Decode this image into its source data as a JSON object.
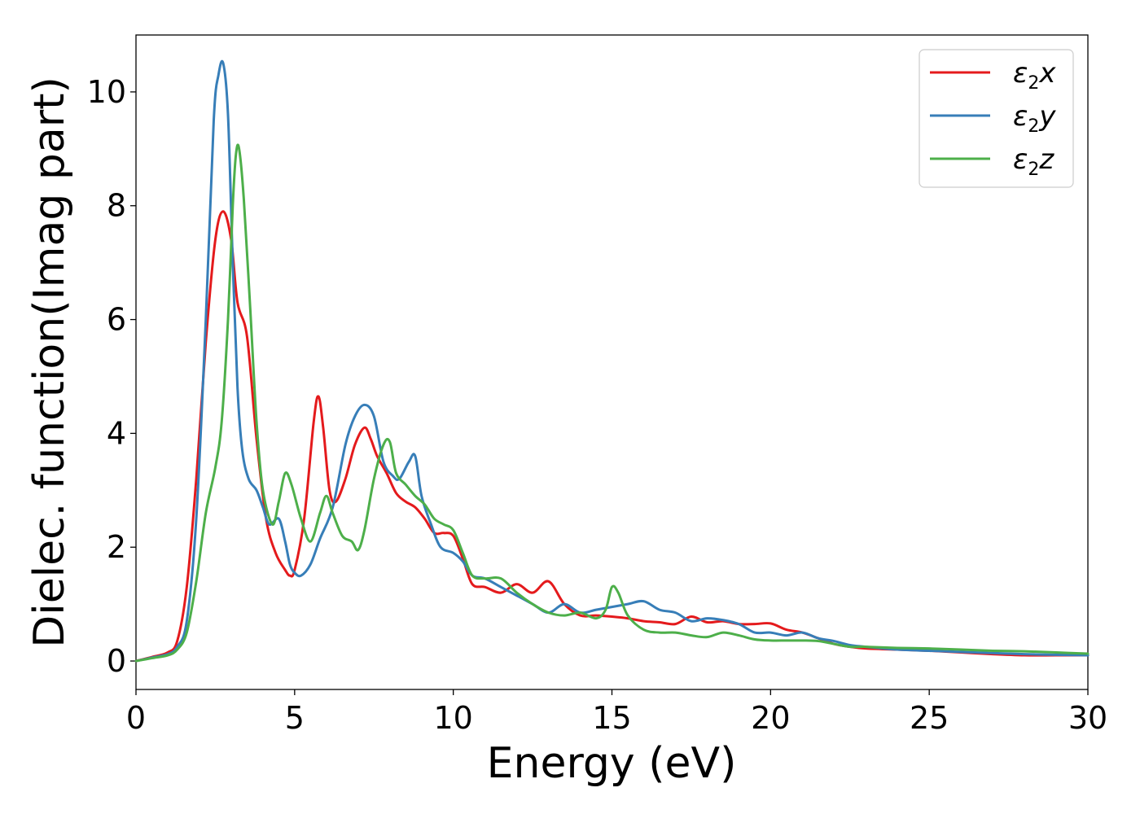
{
  "chart_data": {
    "type": "line",
    "title": "",
    "xlabel": "Energy (eV)",
    "ylabel": "Dielec. function(Imag part)",
    "xlim": [
      0,
      30
    ],
    "ylim": [
      -0.5,
      11
    ],
    "xticks": [
      0,
      5,
      10,
      15,
      20,
      25,
      30
    ],
    "yticks": [
      0,
      2,
      4,
      6,
      8,
      10
    ],
    "grid": false,
    "legend_position": "top-right",
    "series": [
      {
        "name": "ε2x",
        "legend": {
          "base": "ε",
          "sub": "2",
          "suffix": "x"
        },
        "color": "#e41a1c",
        "x": [
          0,
          0.5,
          1.0,
          1.3,
          1.6,
          1.9,
          2.2,
          2.5,
          2.75,
          3.0,
          3.2,
          3.5,
          3.8,
          4.1,
          4.4,
          4.7,
          4.85,
          5.0,
          5.3,
          5.6,
          5.75,
          5.9,
          6.1,
          6.3,
          6.6,
          6.9,
          7.2,
          7.4,
          7.6,
          7.9,
          8.2,
          8.5,
          8.8,
          9.1,
          9.4,
          9.7,
          10.0,
          10.3,
          10.6,
          11.0,
          11.5,
          12.0,
          12.5,
          13.0,
          13.5,
          14.0,
          14.5,
          15.0,
          15.5,
          16.0,
          16.5,
          17.0,
          17.5,
          18.0,
          18.5,
          19.0,
          19.5,
          20.0,
          20.5,
          21.0,
          21.5,
          22.0,
          22.5,
          23.0,
          24.0,
          25.0,
          26.0,
          27.0,
          28.0,
          29.0,
          30.0
        ],
        "values": [
          0.0,
          0.07,
          0.15,
          0.35,
          1.3,
          3.2,
          5.6,
          7.4,
          7.9,
          7.4,
          6.3,
          5.7,
          3.9,
          2.5,
          1.9,
          1.6,
          1.5,
          1.6,
          2.5,
          4.2,
          4.65,
          4.1,
          3.0,
          2.8,
          3.2,
          3.8,
          4.1,
          3.9,
          3.6,
          3.3,
          2.95,
          2.8,
          2.7,
          2.5,
          2.25,
          2.25,
          2.2,
          1.8,
          1.35,
          1.3,
          1.2,
          1.35,
          1.2,
          1.4,
          1.0,
          0.8,
          0.8,
          0.78,
          0.75,
          0.7,
          0.68,
          0.65,
          0.78,
          0.68,
          0.7,
          0.65,
          0.65,
          0.66,
          0.55,
          0.5,
          0.4,
          0.3,
          0.25,
          0.22,
          0.2,
          0.18,
          0.15,
          0.12,
          0.1,
          0.1,
          0.1
        ]
      },
      {
        "name": "ε2y",
        "legend": {
          "base": "ε",
          "sub": "2",
          "suffix": "y"
        },
        "color": "#377eb8",
        "x": [
          0,
          0.5,
          1.0,
          1.3,
          1.6,
          1.9,
          2.2,
          2.45,
          2.6,
          2.75,
          2.9,
          3.05,
          3.2,
          3.35,
          3.55,
          3.8,
          4.0,
          4.2,
          4.5,
          4.7,
          4.85,
          5.0,
          5.2,
          5.5,
          5.8,
          6.2,
          6.6,
          6.9,
          7.2,
          7.5,
          7.8,
          8.1,
          8.3,
          8.6,
          8.8,
          9.0,
          9.3,
          9.6,
          10.0,
          10.3,
          10.6,
          11.0,
          11.5,
          12.0,
          12.5,
          13.0,
          13.5,
          14.0,
          14.5,
          15.0,
          15.5,
          16.0,
          16.5,
          17.0,
          17.5,
          18.0,
          18.5,
          19.0,
          19.5,
          20.0,
          20.5,
          21.0,
          21.5,
          22.0,
          22.5,
          23.0,
          24.0,
          25.0,
          26.0,
          27.0,
          28.0,
          29.0,
          30.0
        ],
        "values": [
          0.0,
          0.06,
          0.12,
          0.25,
          0.7,
          2.5,
          6.0,
          9.5,
          10.3,
          10.5,
          9.6,
          7.0,
          4.8,
          3.7,
          3.2,
          3.0,
          2.7,
          2.4,
          2.5,
          2.1,
          1.7,
          1.55,
          1.5,
          1.7,
          2.15,
          2.7,
          3.8,
          4.3,
          4.5,
          4.3,
          3.5,
          3.25,
          3.2,
          3.5,
          3.6,
          2.9,
          2.4,
          2.0,
          1.9,
          1.75,
          1.5,
          1.45,
          1.3,
          1.15,
          1.0,
          0.85,
          1.0,
          0.85,
          0.9,
          0.95,
          1.0,
          1.05,
          0.9,
          0.85,
          0.7,
          0.75,
          0.72,
          0.65,
          0.5,
          0.5,
          0.45,
          0.5,
          0.4,
          0.35,
          0.28,
          0.25,
          0.2,
          0.18,
          0.16,
          0.14,
          0.12,
          0.11,
          0.1
        ]
      },
      {
        "name": "ε2z",
        "legend": {
          "base": "ε",
          "sub": "2",
          "suffix": "z"
        },
        "color": "#4daf4a",
        "x": [
          0,
          0.5,
          1.0,
          1.3,
          1.6,
          1.9,
          2.2,
          2.5,
          2.7,
          2.9,
          3.05,
          3.15,
          3.25,
          3.4,
          3.6,
          3.8,
          4.0,
          4.3,
          4.5,
          4.7,
          4.9,
          5.2,
          5.5,
          5.8,
          6.0,
          6.2,
          6.5,
          6.8,
          7.0,
          7.2,
          7.5,
          7.8,
          8.0,
          8.2,
          8.5,
          8.8,
          9.1,
          9.4,
          9.7,
          10.0,
          10.3,
          10.6,
          11.0,
          11.5,
          12.0,
          12.5,
          13.0,
          13.5,
          14.0,
          14.5,
          14.8,
          15.0,
          15.2,
          15.5,
          16.0,
          16.5,
          17.0,
          17.5,
          18.0,
          18.5,
          19.0,
          19.5,
          20.0,
          20.5,
          21.0,
          21.5,
          22.0,
          22.5,
          23.0,
          24.0,
          25.0,
          26.0,
          27.0,
          28.0,
          29.0,
          30.0
        ],
        "values": [
          0.0,
          0.05,
          0.1,
          0.2,
          0.5,
          1.4,
          2.6,
          3.4,
          4.2,
          6.0,
          8.0,
          8.9,
          9.0,
          8.1,
          6.2,
          4.2,
          3.0,
          2.4,
          2.8,
          3.3,
          3.1,
          2.5,
          2.1,
          2.6,
          2.9,
          2.6,
          2.2,
          2.1,
          1.95,
          2.3,
          3.2,
          3.8,
          3.85,
          3.3,
          3.1,
          2.9,
          2.75,
          2.5,
          2.4,
          2.3,
          1.9,
          1.5,
          1.45,
          1.45,
          1.2,
          1.0,
          0.85,
          0.8,
          0.85,
          0.75,
          0.9,
          1.3,
          1.2,
          0.8,
          0.55,
          0.5,
          0.5,
          0.45,
          0.42,
          0.5,
          0.45,
          0.38,
          0.36,
          0.36,
          0.36,
          0.35,
          0.3,
          0.25,
          0.25,
          0.23,
          0.22,
          0.2,
          0.18,
          0.17,
          0.15,
          0.13
        ]
      }
    ]
  }
}
